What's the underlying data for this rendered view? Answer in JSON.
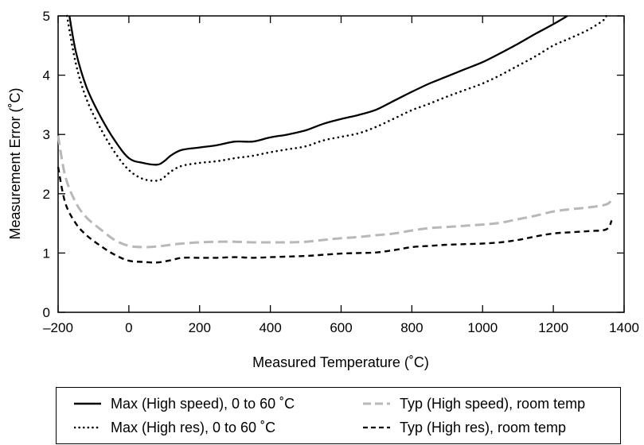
{
  "chart_data": {
    "type": "line",
    "title": "",
    "xlabel": "Measured Temperature (˚C)",
    "ylabel": "Measurement Error (˚C)",
    "xlim": [
      -200,
      1400
    ],
    "ylim": [
      0,
      5
    ],
    "xticks": [
      -200,
      0,
      200,
      400,
      600,
      800,
      1000,
      1200,
      1400
    ],
    "xtick_labels": [
      "–200",
      "0",
      "200",
      "400",
      "600",
      "800",
      "1000",
      "1200",
      "1400"
    ],
    "yticks": [
      0,
      1,
      2,
      3,
      4,
      5
    ],
    "ytick_labels": [
      "0",
      "1",
      "2",
      "3",
      "4",
      "5"
    ],
    "grid": false,
    "legend_position": "bottom",
    "series": [
      {
        "name": "Max (High speed), 0 to 60 ˚C",
        "style": "solid",
        "color": "#000000",
        "x": [
          -168,
          -150,
          -120,
          -80,
          -40,
          0,
          40,
          80,
          100,
          120,
          150,
          200,
          250,
          300,
          350,
          400,
          450,
          500,
          550,
          600,
          650,
          700,
          750,
          800,
          850,
          900,
          950,
          1000,
          1050,
          1100,
          1150,
          1200,
          1240
        ],
        "y": [
          5.0,
          4.4,
          3.8,
          3.3,
          2.9,
          2.6,
          2.52,
          2.49,
          2.55,
          2.65,
          2.74,
          2.78,
          2.82,
          2.88,
          2.88,
          2.95,
          3.0,
          3.07,
          3.18,
          3.26,
          3.33,
          3.42,
          3.57,
          3.72,
          3.86,
          3.98,
          4.1,
          4.22,
          4.37,
          4.53,
          4.7,
          4.86,
          5.0
        ]
      },
      {
        "name": "Max (High res), 0 to 60 ˚C",
        "style": "dotted",
        "color": "#000000",
        "x": [
          -175,
          -150,
          -120,
          -80,
          -40,
          0,
          40,
          80,
          100,
          120,
          150,
          200,
          250,
          300,
          350,
          400,
          450,
          500,
          550,
          600,
          650,
          700,
          750,
          800,
          850,
          900,
          950,
          1000,
          1050,
          1100,
          1150,
          1200,
          1250,
          1300,
          1340,
          1350
        ],
        "y": [
          5.0,
          4.2,
          3.6,
          3.1,
          2.7,
          2.4,
          2.25,
          2.22,
          2.28,
          2.38,
          2.47,
          2.52,
          2.55,
          2.6,
          2.64,
          2.7,
          2.75,
          2.8,
          2.9,
          2.96,
          3.02,
          3.13,
          3.27,
          3.41,
          3.52,
          3.64,
          3.75,
          3.86,
          4.0,
          4.16,
          4.32,
          4.5,
          4.63,
          4.77,
          4.92,
          5.0
        ]
      },
      {
        "name": "Typ (High speed), room temp",
        "style": "dashed",
        "color": "#b8b8b8",
        "x": [
          -200,
          -180,
          -150,
          -120,
          -80,
          -40,
          0,
          40,
          80,
          120,
          150,
          200,
          250,
          300,
          350,
          400,
          450,
          500,
          550,
          600,
          650,
          700,
          750,
          800,
          850,
          900,
          950,
          1000,
          1050,
          1100,
          1150,
          1200,
          1250,
          1300,
          1350,
          1365
        ],
        "y": [
          2.98,
          2.3,
          1.85,
          1.6,
          1.4,
          1.22,
          1.12,
          1.1,
          1.11,
          1.14,
          1.16,
          1.18,
          1.19,
          1.19,
          1.18,
          1.18,
          1.18,
          1.19,
          1.22,
          1.25,
          1.27,
          1.3,
          1.33,
          1.38,
          1.42,
          1.44,
          1.46,
          1.48,
          1.51,
          1.57,
          1.63,
          1.7,
          1.74,
          1.77,
          1.82,
          1.9
        ]
      },
      {
        "name": "Typ (High res), room temp",
        "style": "dashed",
        "color": "#000000",
        "x": [
          -200,
          -180,
          -150,
          -120,
          -80,
          -40,
          0,
          40,
          80,
          120,
          150,
          200,
          250,
          300,
          350,
          400,
          450,
          500,
          550,
          600,
          650,
          700,
          750,
          800,
          850,
          900,
          950,
          1000,
          1050,
          1100,
          1150,
          1200,
          1250,
          1300,
          1350,
          1365
        ],
        "y": [
          2.45,
          1.85,
          1.5,
          1.3,
          1.12,
          0.97,
          0.87,
          0.85,
          0.84,
          0.88,
          0.92,
          0.92,
          0.92,
          0.93,
          0.92,
          0.93,
          0.94,
          0.95,
          0.97,
          0.99,
          1.0,
          1.01,
          1.05,
          1.1,
          1.12,
          1.14,
          1.15,
          1.16,
          1.18,
          1.22,
          1.28,
          1.33,
          1.35,
          1.37,
          1.4,
          1.55
        ]
      }
    ]
  },
  "legend": {
    "items": [
      {
        "label": "Max (High speed), 0 to 60 ˚C"
      },
      {
        "label": "Max (High res), 0 to 60 ˚C"
      },
      {
        "label": "Typ (High speed), room temp"
      },
      {
        "label": "Typ (High res), room temp"
      }
    ]
  }
}
